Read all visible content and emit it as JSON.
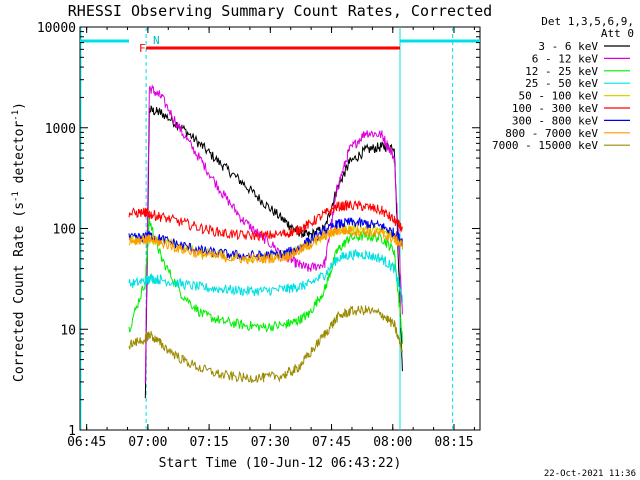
{
  "chart_data": {
    "type": "line",
    "title": "RHESSI Observing Summary Count Rates, Corrected",
    "xlabel": "Start Time (10-Jun-12 06:43:22)",
    "ylabel": "Corrected Count Rate (s",
    "ylabel_sup1": "-1",
    "ylabel_mid": " detector",
    "ylabel_sup2": "-1",
    "ylabel_end": ")",
    "yscale": "log",
    "ylim": [
      1,
      10000
    ],
    "xlim_minutes": [
      0,
      98
    ],
    "x_ticks": [
      {
        "label": "06:45",
        "minutes": 1.63
      },
      {
        "label": "07:00",
        "minutes": 16.63
      },
      {
        "label": "07:15",
        "minutes": 31.63
      },
      {
        "label": "07:30",
        "minutes": 46.63
      },
      {
        "label": "07:45",
        "minutes": 61.63
      },
      {
        "label": "08:00",
        "minutes": 76.63
      },
      {
        "label": "08:15",
        "minutes": 91.63
      }
    ],
    "y_ticks": [
      {
        "label": "1",
        "value": 1
      },
      {
        "label": "10",
        "value": 10
      },
      {
        "label": "100",
        "value": 100
      },
      {
        "label": "1000",
        "value": 1000
      },
      {
        "label": "10000",
        "value": 10000
      }
    ],
    "legend_header": [
      "Det 1,3,5,6,9,",
      "Att 0"
    ],
    "legend_position": "right",
    "flags": {
      "F": "F",
      "N": "N"
    },
    "x_time_points": [
      12,
      16,
      17,
      20,
      25,
      30,
      35,
      40,
      45,
      50,
      53,
      56,
      60,
      63,
      66,
      70,
      74,
      77,
      79
    ],
    "series": [
      {
        "name": "3 - 6 keV",
        "color": "#000000",
        "values": [
          null,
          2,
          1500,
          1400,
          1000,
          650,
          420,
          280,
          180,
          120,
          95,
          85,
          100,
          250,
          450,
          600,
          650,
          650,
          4
        ]
      },
      {
        "name": "6 - 12 keV",
        "color": "#dd00dd",
        "values": [
          null,
          3,
          2500,
          2000,
          900,
          450,
          220,
          120,
          80,
          55,
          45,
          40,
          45,
          250,
          600,
          900,
          850,
          500,
          15
        ]
      },
      {
        "name": "12 - 25 keV",
        "color": "#00ee00",
        "values": [
          10,
          30,
          120,
          50,
          22,
          14,
          12,
          11,
          10.5,
          11,
          12,
          14,
          25,
          60,
          80,
          85,
          80,
          60,
          8
        ]
      },
      {
        "name": "25 - 50 keV",
        "color": "#00e0e0",
        "values": [
          28,
          30,
          32,
          31,
          28,
          26,
          25,
          24,
          24,
          25,
          26,
          28,
          35,
          50,
          55,
          55,
          50,
          40,
          20
        ]
      },
      {
        "name": "50 - 100 keV",
        "color": "#d4d400",
        "values": [
          75,
          78,
          80,
          75,
          65,
          58,
          55,
          52,
          52,
          55,
          60,
          70,
          85,
          95,
          100,
          100,
          95,
          85,
          70
        ]
      },
      {
        "name": "100 - 300 keV",
        "color": "#ff0000",
        "values": [
          140,
          145,
          140,
          130,
          115,
          100,
          90,
          85,
          85,
          88,
          95,
          110,
          140,
          165,
          170,
          165,
          150,
          120,
          100
        ]
      },
      {
        "name": "300 - 800 keV",
        "color": "#0000ee",
        "values": [
          80,
          82,
          85,
          78,
          68,
          60,
          56,
          54,
          54,
          56,
          62,
          75,
          95,
          110,
          115,
          112,
          105,
          90,
          75
        ]
      },
      {
        "name": "800 - 7000 keV",
        "color": "#ff9900",
        "values": [
          76,
          78,
          78,
          72,
          62,
          55,
          52,
          50,
          50,
          52,
          58,
          68,
          85,
          95,
          95,
          92,
          88,
          78,
          68
        ]
      },
      {
        "name": "7000 - 15000 keV",
        "color": "#9a8a00",
        "values": [
          7,
          8,
          9,
          7,
          5,
          4,
          3.5,
          3.3,
          3.3,
          3.5,
          4,
          5.5,
          9,
          13,
          15,
          15.5,
          14,
          11,
          6
        ]
      }
    ],
    "overlays": [
      {
        "color": "#00e0e0",
        "style": "solid",
        "minute": 0.2
      },
      {
        "color": "#00e0e0",
        "style": "dashed",
        "minute": 16.2
      },
      {
        "color": "#00e0e0",
        "style": "solid",
        "minute": 78.4
      },
      {
        "color": "#00e0e0",
        "style": "dashed",
        "minute": 91.3
      }
    ],
    "status_bars": [
      {
        "color": "#00e0e0",
        "from_minute": 0,
        "to_minute": 12
      },
      {
        "color": "#ff0000",
        "from_minute": 16.2,
        "to_minute": 78.4
      },
      {
        "color": "#00e0e0",
        "from_minute": 78.4,
        "to_minute": 98
      }
    ]
  },
  "footer_date": "22-Oct-2021 11:36"
}
